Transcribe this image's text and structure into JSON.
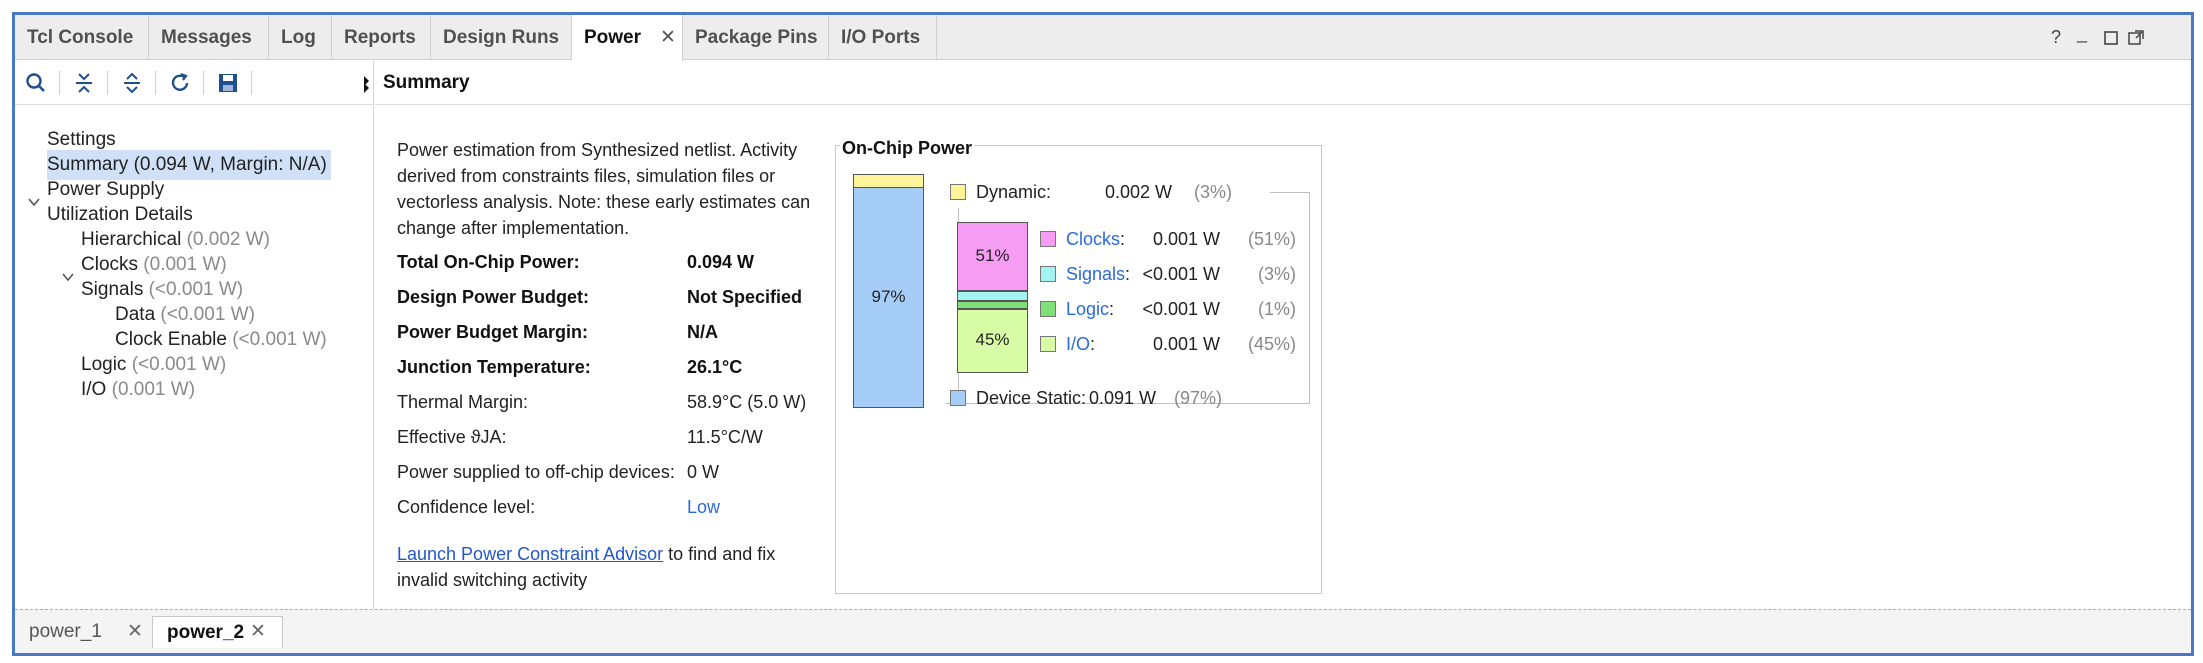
{
  "tabs": [
    {
      "label": "Tcl Console"
    },
    {
      "label": "Messages"
    },
    {
      "label": "Log"
    },
    {
      "label": "Reports"
    },
    {
      "label": "Design Runs"
    },
    {
      "label": "Power"
    },
    {
      "label": "Package Pins"
    },
    {
      "label": "I/O Ports"
    }
  ],
  "window_controls": {
    "help": "?",
    "minimize": "_"
  },
  "tree": {
    "settings": "Settings",
    "summary": "Summary (0.094 W, Margin: N/A)",
    "power_supply": "Power Supply",
    "utilization": "Utilization Details",
    "hierarchical": {
      "label": "Hierarchical",
      "value": "(0.002 W)"
    },
    "clocks": {
      "label": "Clocks",
      "value": "(0.001 W)"
    },
    "signals": {
      "label": "Signals",
      "value": "(<0.001 W)"
    },
    "data": {
      "label": "Data",
      "value": "(<0.001 W)"
    },
    "clock_enable": {
      "label": "Clock Enable",
      "value": "(<0.001 W)"
    },
    "logic": {
      "label": "Logic",
      "value": "(<0.001 W)"
    },
    "io": {
      "label": "I/O",
      "value": "(0.001 W)"
    }
  },
  "summary": {
    "header": "Summary",
    "description": "Power estimation from Synthesized netlist. Activity derived from constraints files, simulation files or vectorless analysis. Note: these early estimates can change after implementation.",
    "props": [
      {
        "label": "Total On-Chip Power:",
        "value": "0.094 W"
      },
      {
        "label": "Design Power Budget:",
        "value": "Not Specified"
      },
      {
        "label": "Power Budget Margin:",
        "value": "N/A"
      },
      {
        "label": "Junction Temperature:",
        "value": "26.1°C"
      },
      {
        "label": "Thermal Margin:",
        "value": "58.9°C (5.0 W)"
      },
      {
        "label": "Effective ϑJA:",
        "value": "11.5°C/W"
      },
      {
        "label": "Power supplied to off-chip devices:",
        "value": "0 W"
      },
      {
        "label": "Confidence level:",
        "value": "Low"
      }
    ],
    "advisor_link": "Launch Power Constraint Advisor",
    "advisor_text": " to find and fix invalid switching activity"
  },
  "onchip": {
    "title": "On-Chip Power",
    "static_pct_label": "97%",
    "dynamic": {
      "label": "Dynamic:",
      "value": "0.002 W",
      "pct": "(3%)"
    },
    "clocks": {
      "label": "Clocks",
      "value": "0.001 W",
      "pct": "(51%)"
    },
    "signals": {
      "label": "Signals",
      "value": "<0.001 W",
      "pct": "(3%)"
    },
    "logic": {
      "label": "Logic",
      "value": "<0.001 W",
      "pct": "(1%)"
    },
    "io": {
      "label": "I/O",
      "value": "0.001 W",
      "pct": "(45%)"
    },
    "device_static": {
      "label": "Device Static:",
      "value": "0.091 W",
      "pct": "(97%)"
    },
    "dyn_top_pct_label": "51%",
    "dyn_bottom_pct_label": "45%",
    "colors": {
      "dynamic": "#fdf49b",
      "static": "#a6cdf7",
      "clocks": "#f79cf3",
      "signals": "#a4f3f3",
      "logic": "#7fe07a",
      "io": "#d8fba6"
    }
  },
  "bottom_tabs": [
    {
      "label": "power_1"
    },
    {
      "label": "power_2"
    }
  ],
  "close_glyph": "✕",
  "colon": ":"
}
